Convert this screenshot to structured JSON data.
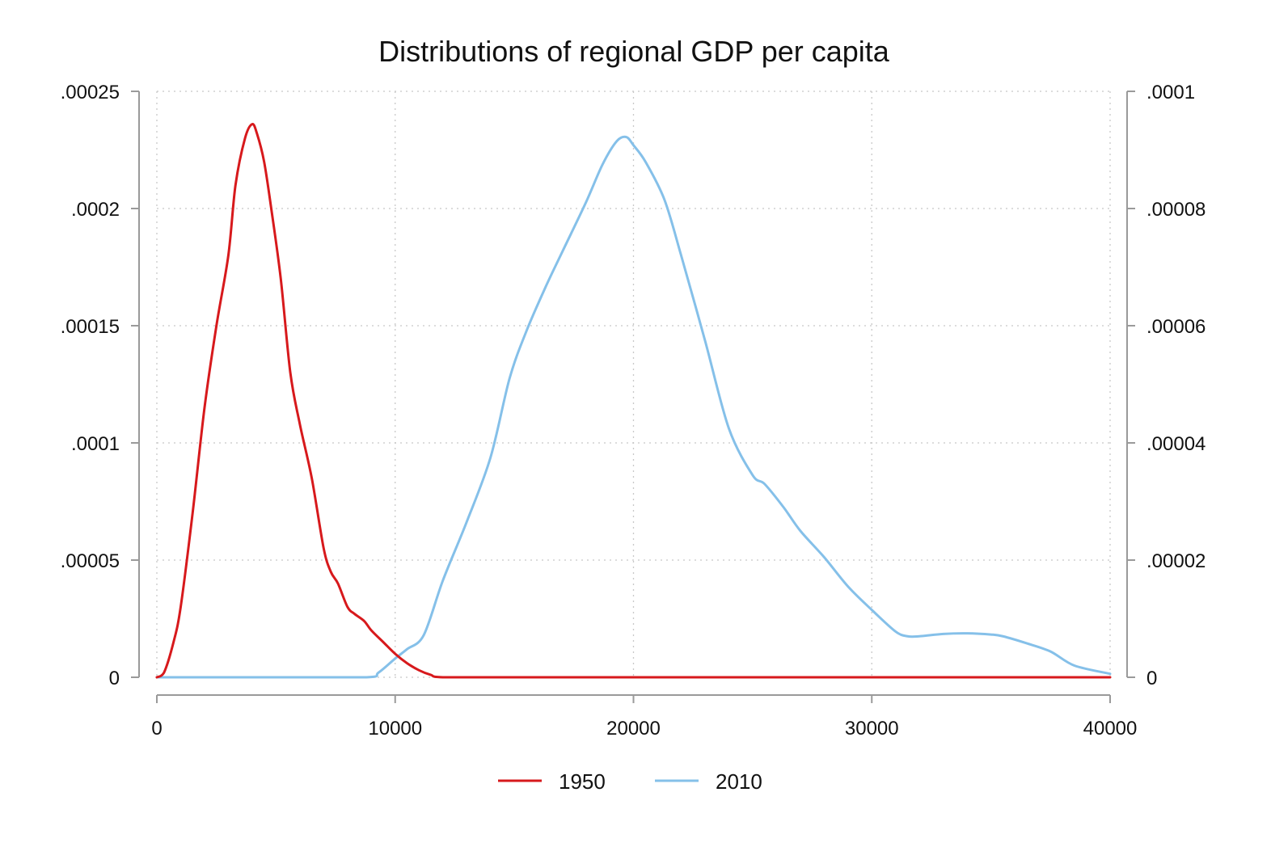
{
  "chart_data": {
    "type": "line",
    "title": "Distributions of regional GDP per capita",
    "xlabel": "",
    "ylabel": "",
    "y2label": "",
    "xlim": [
      0,
      40000
    ],
    "ylim": [
      0,
      0.00025
    ],
    "y2lim": [
      0,
      0.0001
    ],
    "x_ticks": [
      0,
      10000,
      20000,
      30000,
      40000
    ],
    "x_tick_labels": [
      "0",
      "10000",
      "20000",
      "30000",
      "40000"
    ],
    "y_ticks": [
      0,
      5e-05,
      0.0001,
      0.00015,
      0.0002,
      0.00025
    ],
    "y_tick_labels": [
      "0",
      ".00005",
      ".0001",
      ".00015",
      ".0002",
      ".00025"
    ],
    "y2_ticks": [
      0,
      2e-05,
      4e-05,
      6e-05,
      8e-05,
      0.0001
    ],
    "y2_tick_labels": [
      "0",
      ".00002",
      ".00004",
      ".00006",
      ".00008",
      ".0001"
    ],
    "grid": true,
    "legend_position": "bottom",
    "series": [
      {
        "name": "1950",
        "axis": "left",
        "color": "#d7191c",
        "x": [
          0,
          300,
          700,
          1000,
          1500,
          2000,
          2500,
          3000,
          3300,
          3700,
          4000,
          4200,
          4500,
          4800,
          5200,
          5600,
          6000,
          6500,
          7000,
          7300,
          7600,
          8000,
          8300,
          8700,
          9000,
          9500,
          10000,
          10500,
          11000,
          11500,
          12000,
          15000,
          20000,
          25000,
          30000,
          35000,
          40000
        ],
        "y": [
          0,
          2e-06,
          1.5e-05,
          3e-05,
          7e-05,
          0.000115,
          0.00015,
          0.00018,
          0.00021,
          0.00023,
          0.000236,
          0.000232,
          0.00022,
          0.0002,
          0.00017,
          0.00013,
          0.000108,
          8.5e-05,
          5.5e-05,
          4.5e-05,
          4e-05,
          3e-05,
          2.7e-05,
          2.4e-05,
          2e-05,
          1.5e-05,
          1e-05,
          6e-06,
          3e-06,
          1e-06,
          0,
          0,
          0,
          0,
          0,
          0,
          0
        ]
      },
      {
        "name": "2010",
        "axis": "right",
        "color": "#85c0e9",
        "x": [
          0,
          5000,
          8800,
          9300,
          10000,
          10500,
          11200,
          12000,
          13000,
          14000,
          14800,
          15500,
          16300,
          17000,
          18000,
          18700,
          19300,
          19700,
          20000,
          20500,
          21300,
          22000,
          23000,
          24000,
          25000,
          25500,
          26300,
          27000,
          28000,
          29000,
          30000,
          31000,
          31500,
          32000,
          33000,
          34000,
          35000,
          35500,
          36500,
          37500,
          38500,
          40000
        ],
        "y": [
          0,
          0,
          0,
          8e-07,
          3.2e-06,
          4.8e-06,
          7.2e-06,
          1.65e-05,
          2.65e-05,
          3.75e-05,
          5.1e-05,
          5.9e-05,
          6.65e-05,
          7.25e-05,
          8.1e-05,
          8.75e-05,
          9.15e-05,
          9.22e-05,
          9.08e-05,
          8.8e-05,
          8.15e-05,
          7.2e-05,
          5.75e-05,
          4.25e-05,
          3.45e-05,
          3.3e-05,
          2.9e-05,
          2.5e-05,
          2.05e-05,
          1.55e-05,
          1.15e-05,
          7.8e-06,
          7e-06,
          7e-06,
          7.4e-06,
          7.5e-06,
          7.3e-06,
          7e-06,
          5.8e-06,
          4.4e-06,
          2e-06,
          6e-07
        ]
      }
    ]
  }
}
